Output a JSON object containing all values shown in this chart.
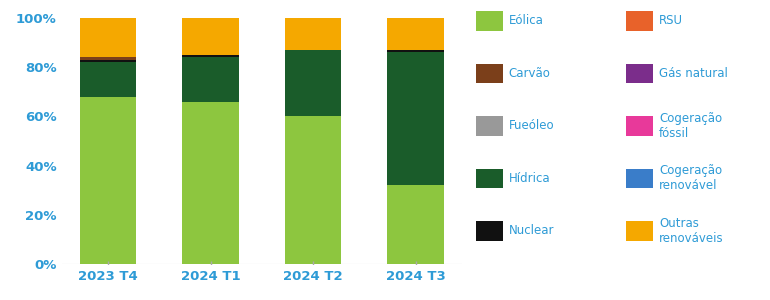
{
  "categories": [
    "2023 T4",
    "2024 T1",
    "2024 T2",
    "2024 T3"
  ],
  "series": {
    "Eólica": [
      68,
      66,
      60,
      32
    ],
    "Hídrica": [
      14,
      18,
      27,
      54
    ],
    "Nuclear": [
      1,
      1,
      0,
      1
    ],
    "Carvão": [
      1,
      0,
      0,
      0
    ],
    "Fueóleo": [
      0,
      0,
      0,
      0
    ],
    "RSU": [
      0,
      0,
      0,
      0
    ],
    "Gás natural": [
      0,
      0,
      0,
      0
    ],
    "Cogeração fóssil": [
      0,
      0,
      0,
      0
    ],
    "Cogeração renovável": [
      0,
      0,
      0,
      0
    ],
    "Outras renováveis": [
      16,
      15,
      13,
      13
    ]
  },
  "colors": {
    "Eólica": "#8DC63F",
    "Hídrica": "#1A5C2A",
    "Nuclear": "#111111",
    "Carvão": "#7B3F1A",
    "Fueóleo": "#999999",
    "RSU": "#E8622A",
    "Gás natural": "#7B2D8B",
    "Cogeração fóssil": "#E8399A",
    "Cogeração renovável": "#3A7DC9",
    "Outras renováveis": "#F5A800"
  },
  "legend_col1": [
    "Eólica",
    "Carvão",
    "Fueóleo",
    "Hídrica",
    "Nuclear"
  ],
  "legend_col2": [
    "RSU",
    "Gás natural",
    "Cogeração\nfóssil",
    "Cogeração\nrenovável",
    "Outras\nrenováveis"
  ],
  "legend_col2_keys": [
    "RSU",
    "Gás natural",
    "Cogeração fóssil",
    "Cogeração renovável",
    "Outras renováveis"
  ],
  "stack_order": [
    "Eólica",
    "Hídrica",
    "Nuclear",
    "Carvão",
    "Fueóleo",
    "RSU",
    "Gás natural",
    "Cogeração fóssil",
    "Cogeração renovável",
    "Outras renováveis"
  ],
  "bar_width": 0.55,
  "ylim": [
    0,
    100
  ],
  "yticks": [
    0,
    20,
    40,
    60,
    80,
    100
  ],
  "ytick_labels": [
    "0%",
    "20%",
    "40%",
    "60%",
    "80%",
    "100%"
  ],
  "axis_color": "#2E9BD6",
  "background_color": "#FFFFFF",
  "legend_fontsize": 8.5,
  "tick_fontsize": 9.5
}
